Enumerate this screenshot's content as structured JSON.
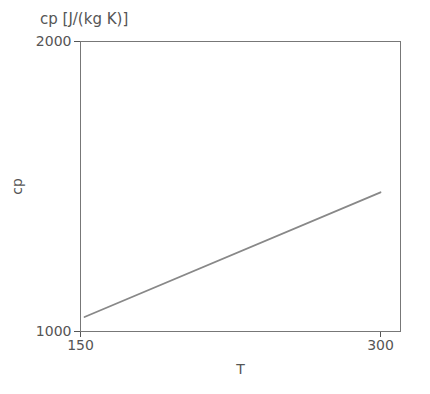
{
  "chart_data": {
    "type": "line",
    "title": "cp [J/(kg K)]",
    "x_label": "T",
    "y_label": "cp",
    "x": [
      152,
      300
    ],
    "values": [
      1050,
      1480
    ],
    "color": "#888888",
    "xlim": [
      150,
      310
    ],
    "xticks": [
      150,
      300
    ],
    "ylim": [
      1000,
      2000
    ],
    "yticks": [
      1000,
      2000
    ],
    "grid": false
  }
}
